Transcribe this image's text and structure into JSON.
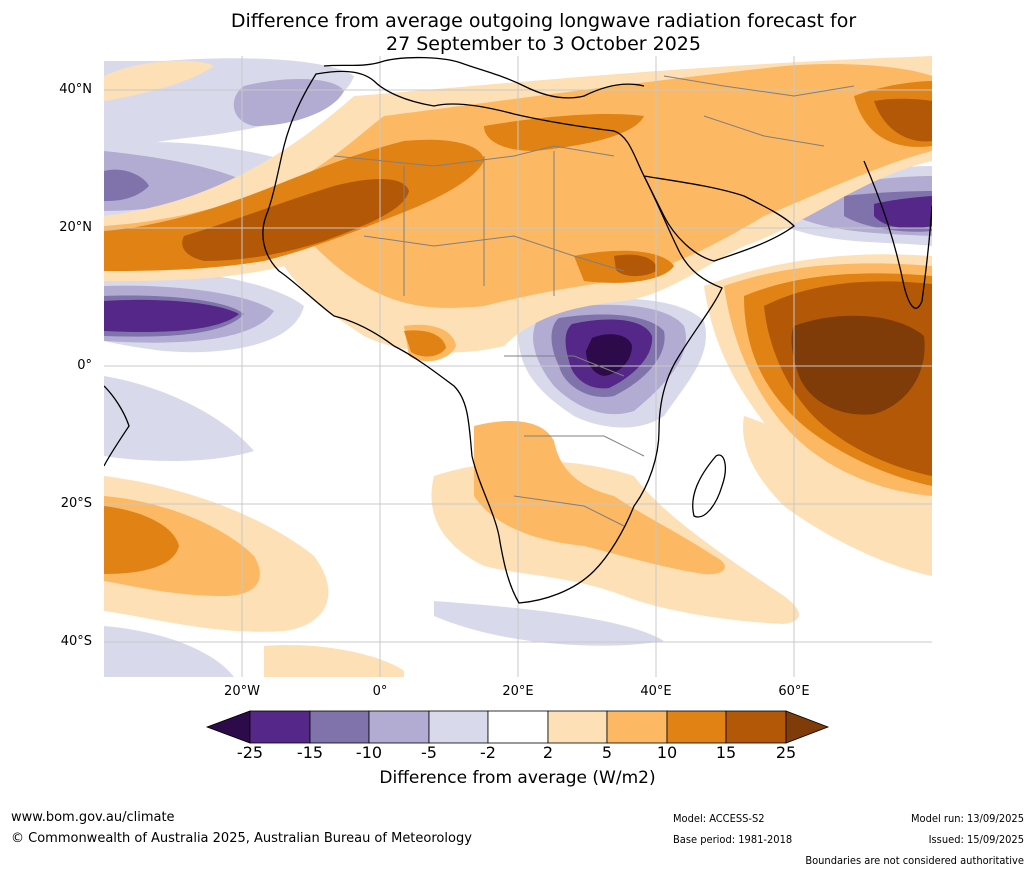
{
  "title": {
    "line1": "Difference from average outgoing longwave radiation forecast for",
    "line2": "27 September to 3 October 2025"
  },
  "axes": {
    "lat_ticks": [
      "40°N",
      "20°N",
      "0°",
      "20°S",
      "40°S"
    ],
    "lon_ticks": [
      "20°W",
      "0°",
      "20°E",
      "40°E",
      "60°E"
    ]
  },
  "colorbar": {
    "ticks": [
      "-25",
      "-15",
      "-10",
      "-5",
      "-2",
      "2",
      "5",
      "10",
      "15",
      "25"
    ],
    "label": "Difference from average (W/m2)",
    "colors": {
      "below_-25": "#2d0a4a",
      "-25_-15": "#542788",
      "-15_-10": "#8073ac",
      "-10_-5": "#b2abd2",
      "-5_-2": "#d8daeb",
      "-2_2": "#ffffff",
      "2_5": "#fee0b6",
      "5_10": "#fdb863",
      "10_15": "#e08214",
      "15_25": "#b35806",
      "above_25": "#7f3b08"
    }
  },
  "footer": {
    "website": "www.bom.gov.au/climate",
    "copyright": "© Commonwealth of Australia 2025, Australian Bureau of Meteorology",
    "model": "Model: ACCESS-S2",
    "base_period": "Base period: 1981-2018",
    "model_run": "Model run: 13/09/2025",
    "issued": "Issued: 15/09/2025",
    "disclaimer": "Boundaries are not considered authoritative"
  }
}
